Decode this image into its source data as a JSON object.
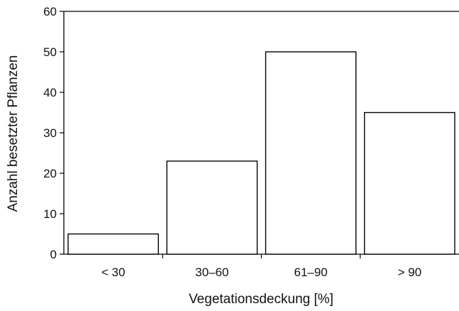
{
  "chart_data": {
    "type": "bar",
    "categories": [
      "< 30",
      "30–60",
      "61–90",
      "> 90"
    ],
    "values": [
      5,
      23,
      50,
      35
    ],
    "xlabel": "Vegetationsdeckung [%]",
    "ylabel": "Anzahl besetzter Pflanzen",
    "ylim": [
      0,
      60
    ],
    "yticks": [
      0,
      10,
      20,
      30,
      40,
      50,
      60
    ],
    "grid": false,
    "legend": "none",
    "bar_fill": "#ffffff",
    "bar_stroke": "#000000"
  }
}
